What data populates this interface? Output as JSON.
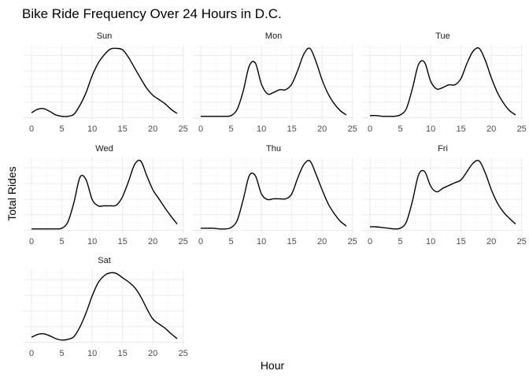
{
  "chart_data": {
    "type": "line",
    "title": "Bike Ride Frequency Over 24 Hours in D.C.",
    "xlabel": "Hour",
    "ylabel": "Total Rides",
    "xlim": [
      0,
      24
    ],
    "xticks": [
      "0",
      "5",
      "10",
      "15",
      "20",
      "25"
    ],
    "ylim": [
      0,
      1
    ],
    "y_tick_labels_shown": false,
    "facet_layout": "3 columns, 3 rows",
    "grid": true,
    "x": [
      0,
      1,
      2,
      3,
      4,
      5,
      6,
      7,
      8,
      9,
      10,
      11,
      12,
      13,
      14,
      15,
      16,
      17,
      18,
      19,
      20,
      21,
      22,
      23,
      24
    ],
    "series": [
      {
        "name": "Sun",
        "values": [
          0.07,
          0.12,
          0.13,
          0.09,
          0.04,
          0.02,
          0.02,
          0.05,
          0.18,
          0.36,
          0.6,
          0.78,
          0.9,
          0.98,
          0.99,
          0.97,
          0.86,
          0.71,
          0.56,
          0.42,
          0.32,
          0.26,
          0.2,
          0.12,
          0.06
        ]
      },
      {
        "name": "Mon",
        "values": [
          0.02,
          0.02,
          0.02,
          0.02,
          0.02,
          0.03,
          0.12,
          0.38,
          0.74,
          0.78,
          0.48,
          0.34,
          0.36,
          0.4,
          0.4,
          0.48,
          0.68,
          0.91,
          0.99,
          0.8,
          0.54,
          0.34,
          0.2,
          0.1,
          0.04
        ]
      },
      {
        "name": "Tue",
        "values": [
          0.03,
          0.03,
          0.02,
          0.02,
          0.02,
          0.04,
          0.13,
          0.42,
          0.76,
          0.79,
          0.52,
          0.41,
          0.43,
          0.47,
          0.47,
          0.56,
          0.78,
          0.95,
          0.99,
          0.82,
          0.57,
          0.36,
          0.21,
          0.1,
          0.04
        ]
      },
      {
        "name": "Wed",
        "values": [
          0.02,
          0.02,
          0.02,
          0.02,
          0.02,
          0.03,
          0.12,
          0.4,
          0.76,
          0.72,
          0.44,
          0.35,
          0.35,
          0.35,
          0.36,
          0.48,
          0.7,
          0.94,
          0.99,
          0.78,
          0.58,
          0.45,
          0.32,
          0.2,
          0.09
        ]
      },
      {
        "name": "Thu",
        "values": [
          0.03,
          0.03,
          0.03,
          0.02,
          0.02,
          0.04,
          0.14,
          0.44,
          0.78,
          0.78,
          0.52,
          0.44,
          0.45,
          0.45,
          0.45,
          0.52,
          0.75,
          0.94,
          0.99,
          0.8,
          0.58,
          0.38,
          0.24,
          0.13,
          0.06
        ]
      },
      {
        "name": "Fri",
        "values": [
          0.05,
          0.05,
          0.04,
          0.03,
          0.02,
          0.03,
          0.12,
          0.42,
          0.79,
          0.84,
          0.63,
          0.55,
          0.6,
          0.64,
          0.68,
          0.72,
          0.84,
          0.96,
          0.99,
          0.82,
          0.58,
          0.39,
          0.26,
          0.17,
          0.09
        ]
      },
      {
        "name": "Sat",
        "values": [
          0.07,
          0.11,
          0.12,
          0.09,
          0.05,
          0.03,
          0.04,
          0.08,
          0.22,
          0.42,
          0.66,
          0.85,
          0.95,
          0.99,
          0.98,
          0.92,
          0.86,
          0.78,
          0.65,
          0.48,
          0.33,
          0.26,
          0.2,
          0.12,
          0.05
        ]
      }
    ]
  }
}
